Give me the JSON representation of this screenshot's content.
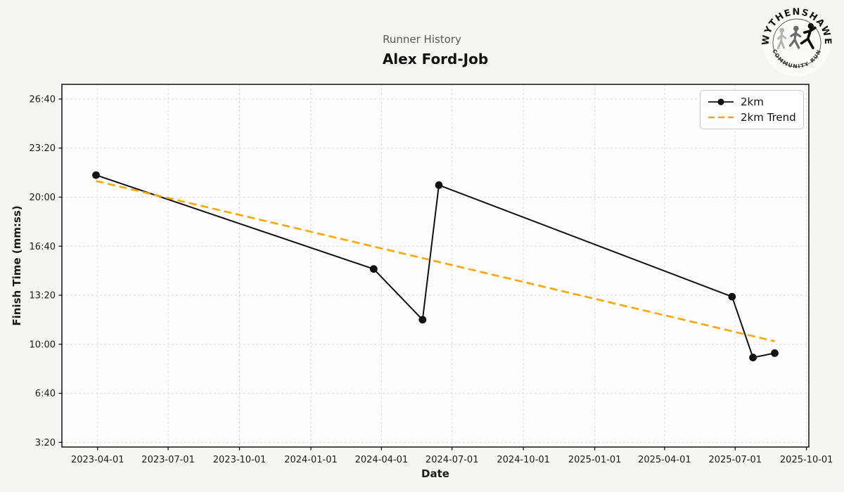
{
  "logo": {
    "top_text": "WYTHENSHAWE",
    "bottom_text": "COMMUNITY RUN"
  },
  "chart_data": {
    "type": "line",
    "subtitle": "Runner History",
    "title": "Alex Ford-Job",
    "xlabel": "Date",
    "ylabel": "Finish Time (mm:ss)",
    "grid": true,
    "legend_position": "upper right",
    "xlim": [
      "2023-02-14",
      "2025-10-04"
    ],
    "ylim_seconds": [
      181,
      1660
    ],
    "x_ticks": [
      "2023-04-01",
      "2023-07-01",
      "2023-10-01",
      "2024-01-01",
      "2024-04-01",
      "2024-07-01",
      "2024-10-01",
      "2025-01-01",
      "2025-04-01",
      "2025-07-01",
      "2025-10-01"
    ],
    "y_ticks": [
      {
        "label": "3:20",
        "seconds": 200
      },
      {
        "label": "6:40",
        "seconds": 400
      },
      {
        "label": "10:00",
        "seconds": 600
      },
      {
        "label": "13:20",
        "seconds": 800
      },
      {
        "label": "16:40",
        "seconds": 1000
      },
      {
        "label": "20:00",
        "seconds": 1200
      },
      {
        "label": "23:20",
        "seconds": 1400
      },
      {
        "label": "26:40",
        "seconds": 1600
      }
    ],
    "series": [
      {
        "name": "2km",
        "style": "solid",
        "marker": true,
        "color": "#111111",
        "points": [
          {
            "date": "2023-03-30",
            "time": "21:30",
            "seconds": 1290
          },
          {
            "date": "2024-03-22",
            "time": "15:07",
            "seconds": 907
          },
          {
            "date": "2024-05-24",
            "time": "11:40",
            "seconds": 700
          },
          {
            "date": "2024-06-14",
            "time": "20:49",
            "seconds": 1249
          },
          {
            "date": "2025-06-27",
            "time": "13:14",
            "seconds": 794
          },
          {
            "date": "2025-07-24",
            "time": "9:06",
            "seconds": 546
          },
          {
            "date": "2025-08-21",
            "time": "9:24",
            "seconds": 564
          }
        ]
      },
      {
        "name": "2km Trend",
        "style": "dashed",
        "marker": false,
        "color": "#FFA500",
        "points": [
          {
            "date": "2023-03-30",
            "time": "21:06",
            "seconds": 1266
          },
          {
            "date": "2025-08-21",
            "time": "10:12",
            "seconds": 612
          }
        ]
      }
    ],
    "colors": {
      "figure_bg": "#f5f5f3",
      "plot_bg": "#fdfdfd",
      "grid": "#dcdcdc",
      "frame": "#000000",
      "tick_label": "#1a1a1a"
    }
  }
}
